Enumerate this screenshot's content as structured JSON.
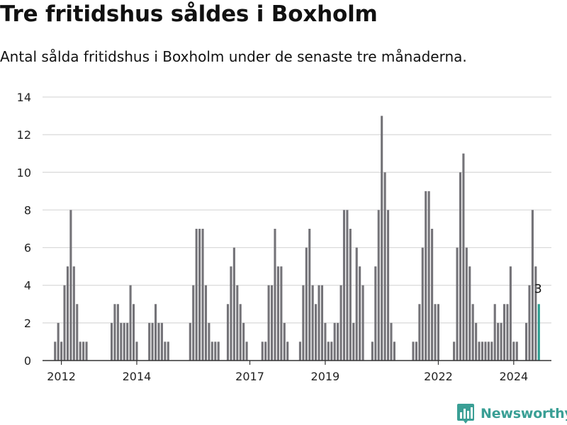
{
  "title": "Tre fritidshus såldes i Boxholm",
  "subtitle": "Antal sålda fritidshus i Boxholm under de senaste tre månaderna.",
  "brand": {
    "name": "Newsworthy",
    "icon": "bar-chart-pin-icon",
    "color": "#3a9f95"
  },
  "colors": {
    "bar": "#747378",
    "highlight": "#2a9d8f",
    "grid": "#d9d9d9",
    "axis": "#333333"
  },
  "chart_data": {
    "type": "bar",
    "title": "Tre fritidshus såldes i Boxholm",
    "subtitle": "Antal sålda fritidshus i Boxholm under de senaste tre månaderna.",
    "xlabel": "",
    "ylabel": "",
    "ylim": [
      0,
      14
    ],
    "yticks": [
      0,
      2,
      4,
      6,
      8,
      10,
      12,
      14
    ],
    "xlim": [
      "2011-07",
      "2025-01"
    ],
    "xticks": [
      {
        "label": "2012",
        "month": "2012-01"
      },
      {
        "label": "2014",
        "month": "2014-01"
      },
      {
        "label": "2017",
        "month": "2017-01"
      },
      {
        "label": "2019",
        "month": "2019-01"
      },
      {
        "label": "2022",
        "month": "2022-01"
      },
      {
        "label": "2024",
        "month": "2024-01"
      }
    ],
    "grid": true,
    "series": [
      {
        "values": [
          [
            "2011-11",
            1
          ],
          [
            "2011-12",
            2
          ],
          [
            "2012-01",
            1
          ],
          [
            "2012-02",
            4
          ],
          [
            "2012-03",
            5
          ],
          [
            "2012-04",
            8
          ],
          [
            "2012-05",
            5
          ],
          [
            "2012-06",
            3
          ],
          [
            "2012-07",
            1
          ],
          [
            "2012-08",
            1
          ],
          [
            "2012-09",
            1
          ],
          [
            "2013-05",
            2
          ],
          [
            "2013-06",
            3
          ],
          [
            "2013-07",
            3
          ],
          [
            "2013-08",
            2
          ],
          [
            "2013-09",
            2
          ],
          [
            "2013-10",
            2
          ],
          [
            "2013-11",
            4
          ],
          [
            "2013-12",
            3
          ],
          [
            "2014-01",
            1
          ],
          [
            "2014-05",
            2
          ],
          [
            "2014-06",
            2
          ],
          [
            "2014-07",
            3
          ],
          [
            "2014-08",
            2
          ],
          [
            "2014-09",
            2
          ],
          [
            "2014-10",
            1
          ],
          [
            "2014-11",
            1
          ],
          [
            "2015-06",
            2
          ],
          [
            "2015-07",
            4
          ],
          [
            "2015-08",
            7
          ],
          [
            "2015-09",
            7
          ],
          [
            "2015-10",
            7
          ],
          [
            "2015-11",
            4
          ],
          [
            "2015-12",
            2
          ],
          [
            "2016-01",
            1
          ],
          [
            "2016-02",
            1
          ],
          [
            "2016-03",
            1
          ],
          [
            "2016-06",
            3
          ],
          [
            "2016-07",
            5
          ],
          [
            "2016-08",
            6
          ],
          [
            "2016-09",
            4
          ],
          [
            "2016-10",
            3
          ],
          [
            "2016-11",
            2
          ],
          [
            "2016-12",
            1
          ],
          [
            "2017-05",
            1
          ],
          [
            "2017-06",
            1
          ],
          [
            "2017-07",
            4
          ],
          [
            "2017-08",
            4
          ],
          [
            "2017-09",
            7
          ],
          [
            "2017-10",
            5
          ],
          [
            "2017-11",
            5
          ],
          [
            "2017-12",
            2
          ],
          [
            "2018-01",
            1
          ],
          [
            "2018-05",
            1
          ],
          [
            "2018-06",
            4
          ],
          [
            "2018-07",
            6
          ],
          [
            "2018-08",
            7
          ],
          [
            "2018-09",
            4
          ],
          [
            "2018-10",
            3
          ],
          [
            "2018-11",
            4
          ],
          [
            "2018-12",
            4
          ],
          [
            "2019-01",
            2
          ],
          [
            "2019-02",
            1
          ],
          [
            "2019-03",
            1
          ],
          [
            "2019-04",
            2
          ],
          [
            "2019-05",
            2
          ],
          [
            "2019-06",
            4
          ],
          [
            "2019-07",
            8
          ],
          [
            "2019-08",
            8
          ],
          [
            "2019-09",
            7
          ],
          [
            "2019-10",
            2
          ],
          [
            "2019-11",
            6
          ],
          [
            "2019-12",
            5
          ],
          [
            "2020-01",
            4
          ],
          [
            "2020-04",
            1
          ],
          [
            "2020-05",
            5
          ],
          [
            "2020-06",
            8
          ],
          [
            "2020-07",
            13
          ],
          [
            "2020-08",
            10
          ],
          [
            "2020-09",
            8
          ],
          [
            "2020-10",
            2
          ],
          [
            "2020-11",
            1
          ],
          [
            "2021-05",
            1
          ],
          [
            "2021-06",
            1
          ],
          [
            "2021-07",
            3
          ],
          [
            "2021-08",
            6
          ],
          [
            "2021-09",
            9
          ],
          [
            "2021-10",
            9
          ],
          [
            "2021-11",
            7
          ],
          [
            "2021-12",
            3
          ],
          [
            "2022-01",
            3
          ],
          [
            "2022-06",
            1
          ],
          [
            "2022-07",
            6
          ],
          [
            "2022-08",
            10
          ],
          [
            "2022-09",
            11
          ],
          [
            "2022-10",
            6
          ],
          [
            "2022-11",
            5
          ],
          [
            "2022-12",
            3
          ],
          [
            "2023-01",
            2
          ],
          [
            "2023-02",
            1
          ],
          [
            "2023-03",
            1
          ],
          [
            "2023-04",
            1
          ],
          [
            "2023-05",
            1
          ],
          [
            "2023-06",
            1
          ],
          [
            "2023-07",
            3
          ],
          [
            "2023-08",
            2
          ],
          [
            "2023-09",
            2
          ],
          [
            "2023-10",
            3
          ],
          [
            "2023-11",
            3
          ],
          [
            "2023-12",
            5
          ],
          [
            "2024-01",
            1
          ],
          [
            "2024-02",
            1
          ],
          [
            "2024-05",
            2
          ],
          [
            "2024-06",
            4
          ],
          [
            "2024-07",
            8
          ],
          [
            "2024-08",
            5
          ],
          [
            "2024-09",
            3
          ]
        ]
      }
    ],
    "highlight": {
      "month": "2024-09",
      "value": 3,
      "label": "3"
    }
  }
}
